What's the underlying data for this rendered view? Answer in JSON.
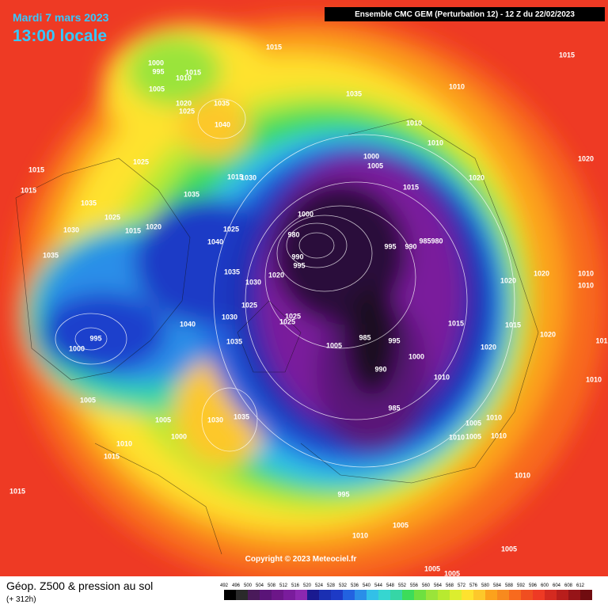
{
  "header": {
    "date": "Mardi 7 mars 2023",
    "time": "13:00 locale",
    "run": "Ensemble CMC GEM  (Perturbation 12)  -  12 Z du 22/02/2023"
  },
  "footer": {
    "title": "Géop. Z500 & pression au sol",
    "lead": "(+ 312h)",
    "copyright": "Copyright © 2023 Meteociel.fr"
  },
  "scale": [
    492,
    496,
    500,
    504,
    508,
    512,
    516,
    520,
    524,
    528,
    532,
    536,
    540,
    544,
    548,
    552,
    556,
    560,
    564,
    568,
    572,
    576,
    580,
    584,
    588,
    592,
    596,
    600,
    604,
    608,
    612
  ],
  "isobar_labels": [
    1000,
    995,
    1010,
    1015,
    1015,
    1015,
    1005,
    1020,
    1025,
    1035,
    1040,
    1035,
    1010,
    1010,
    1010,
    1000,
    1005,
    1020,
    1020,
    1015,
    1015,
    1025,
    1035,
    1015,
    1030,
    1035,
    1025,
    1030,
    1015,
    1020,
    1025,
    1040,
    1000,
    980,
    995,
    990,
    985,
    980,
    1015,
    990,
    995,
    1035,
    1035,
    1030,
    1020,
    1020,
    1020,
    1010,
    1010,
    1025,
    1030,
    1025,
    1025,
    1040,
    1015,
    1015,
    1020,
    101,
    995,
    1000,
    1035,
    1005,
    985,
    995,
    1000,
    990,
    1020,
    1010,
    1010,
    1005,
    985,
    1005,
    1030,
    1035,
    1000,
    1010,
    1015,
    1005,
    1010,
    1010,
    1010,
    1005,
    1015,
    995,
    1010,
    1005,
    1010,
    1005,
    1005,
    1005
  ]
}
